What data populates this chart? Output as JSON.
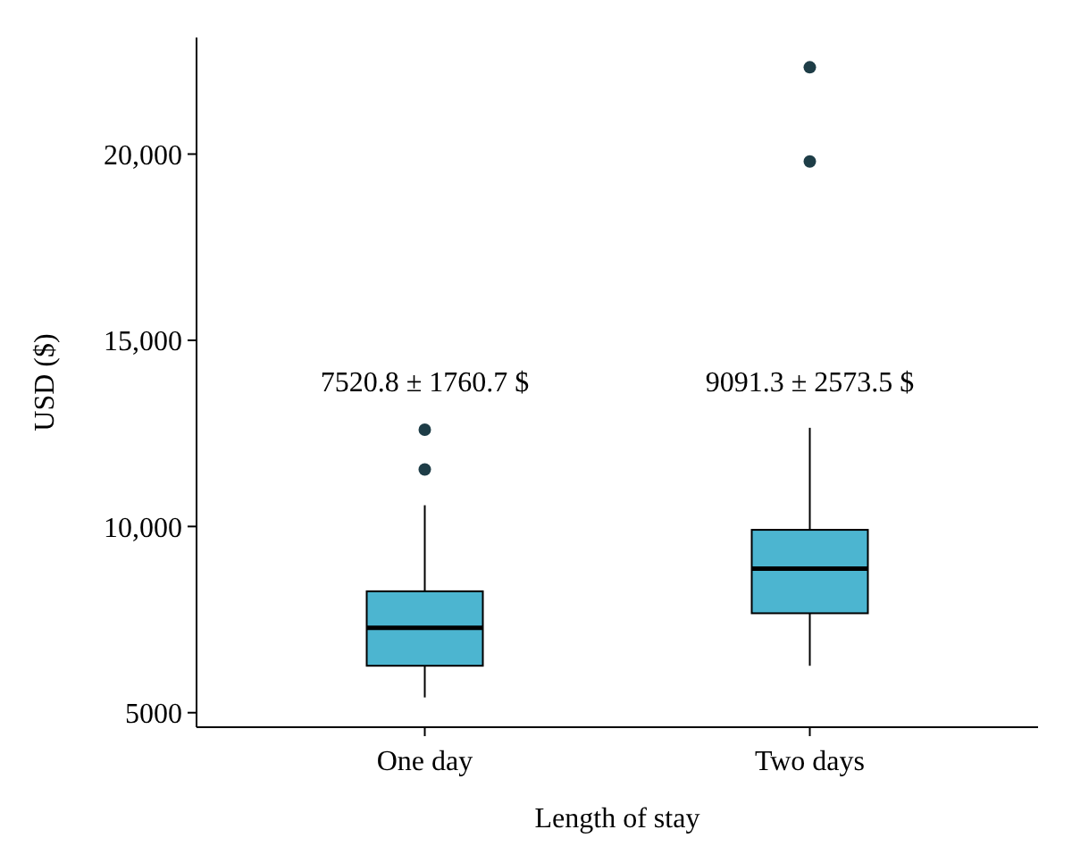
{
  "chart_data": {
    "type": "box",
    "xlabel": "Length of stay",
    "ylabel": "USD ($)",
    "categories": [
      "One day",
      "Two days"
    ],
    "color": "#4cb5d0",
    "ylim": [
      4610,
      23130
    ],
    "yticks": [
      {
        "value": 5000,
        "label": "5000"
      },
      {
        "value": 10000,
        "label": "10,000"
      },
      {
        "value": 15000,
        "label": "15,000"
      },
      {
        "value": 20000,
        "label": "20,000"
      }
    ],
    "boxes": [
      {
        "low": 5410,
        "q1": 6260,
        "median": 7280,
        "q3": 8260,
        "high": 10570,
        "outliers": [
          11530,
          12600
        ]
      },
      {
        "low": 6260,
        "q1": 7670,
        "median": 8870,
        "q3": 9910,
        "high": 12650,
        "outliers": [
          19800,
          22330
        ]
      }
    ],
    "annotations": [
      "7520.8 ± 1760.7 $",
      "9091.3 ± 2573.5 $"
    ],
    "grid": false
  }
}
